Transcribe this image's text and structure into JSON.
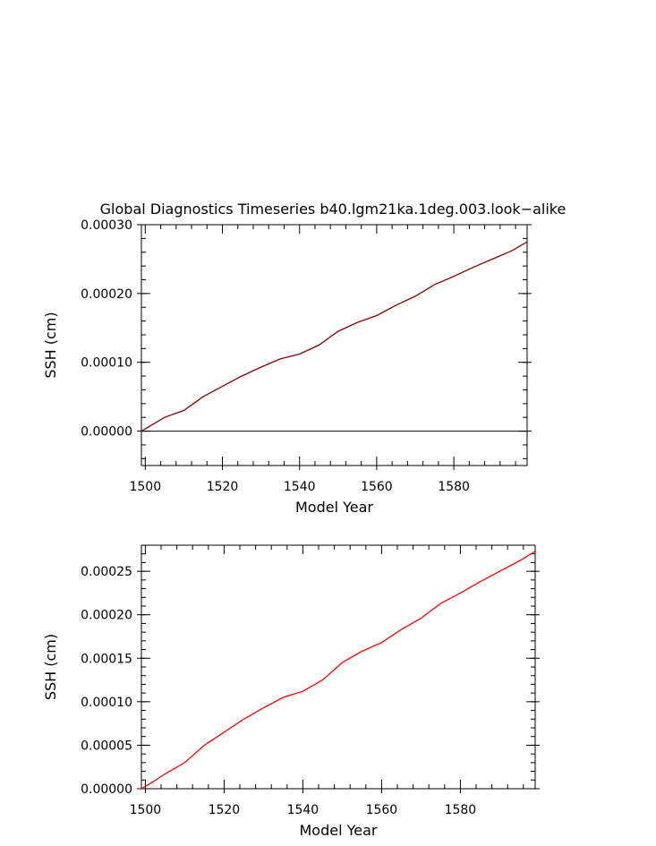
{
  "figure": {
    "title": "Global Diagnostics Timeseries b40.lgm21ka.1deg.003.look−alike"
  },
  "chart_data": [
    {
      "type": "line",
      "xlabel": "Model Year",
      "ylabel": "SSH (cm)",
      "xlim": [
        1499,
        1599
      ],
      "ylim": [
        -5e-05,
        0.0003
      ],
      "x_ticks": [
        1500,
        1520,
        1540,
        1560,
        1580
      ],
      "x_tick_labels": [
        "1500",
        "1520",
        "1540",
        "1560",
        "1580"
      ],
      "y_ticks": [
        0,
        0.0001,
        0.0002,
        0.0003
      ],
      "y_tick_labels": [
        "0.00000",
        "0.00010",
        "0.00020",
        "0.00030"
      ],
      "reference_line": 0,
      "series": [
        {
          "color": "#8b0000",
          "x": [
            1499,
            1502,
            1505,
            1510,
            1515,
            1520,
            1525,
            1530,
            1535,
            1540,
            1545,
            1550,
            1555,
            1560,
            1565,
            1570,
            1575,
            1580,
            1585,
            1590,
            1595,
            1599
          ],
          "y": [
            0.0,
            1e-05,
            2e-05,
            3e-05,
            5e-05,
            6.5e-05,
            8e-05,
            9.3e-05,
            0.000105,
            0.000112,
            0.000125,
            0.000145,
            0.000158,
            0.000168,
            0.000183,
            0.000196,
            0.000213,
            0.000225,
            0.000238,
            0.00025,
            0.000262,
            0.000275
          ]
        }
      ]
    },
    {
      "type": "line",
      "xlabel": "Model Year",
      "ylabel": "SSH (cm)",
      "xlim": [
        1499,
        1599
      ],
      "ylim": [
        0,
        0.00028
      ],
      "x_ticks": [
        1500,
        1520,
        1540,
        1560,
        1580
      ],
      "x_tick_labels": [
        "1500",
        "1520",
        "1540",
        "1560",
        "1580"
      ],
      "y_ticks": [
        0,
        5e-05,
        0.0001,
        0.00015,
        0.0002,
        0.00025
      ],
      "y_tick_labels": [
        "0.00000",
        "0.00005",
        "0.00010",
        "0.00015",
        "0.00020",
        "0.00025"
      ],
      "series": [
        {
          "color": "#ff0000",
          "x": [
            1499,
            1502,
            1505,
            1510,
            1515,
            1520,
            1525,
            1530,
            1535,
            1540,
            1545,
            1550,
            1555,
            1560,
            1565,
            1570,
            1575,
            1580,
            1585,
            1590,
            1595,
            1599
          ],
          "y": [
            0.0,
            8e-06,
            1.7e-05,
            3e-05,
            5e-05,
            6.5e-05,
            8e-05,
            9.3e-05,
            0.000105,
            0.000112,
            0.000125,
            0.000145,
            0.000158,
            0.000168,
            0.000183,
            0.000196,
            0.000213,
            0.000225,
            0.000238,
            0.00025,
            0.000262,
            0.000273
          ]
        }
      ]
    }
  ]
}
